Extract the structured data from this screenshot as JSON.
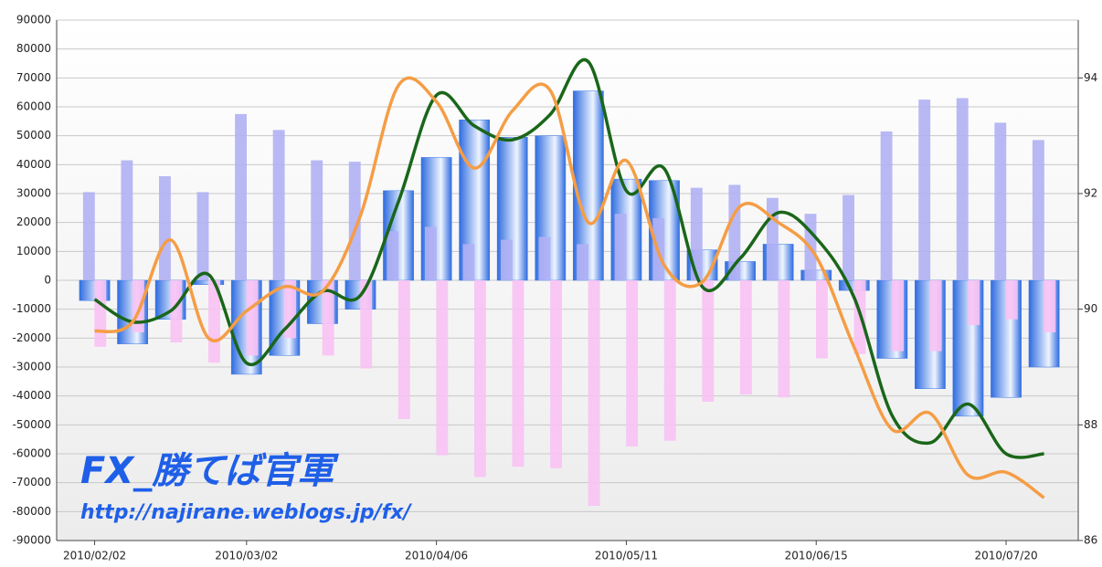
{
  "chart_data": {
    "type": "bar-line",
    "categories": [
      "2010/02/02",
      null,
      null,
      null,
      "2010/03/02",
      null,
      null,
      null,
      null,
      "2010/04/06",
      null,
      null,
      null,
      null,
      "2010/05/11",
      null,
      null,
      null,
      null,
      "2010/06/15",
      null,
      null,
      null,
      null,
      "2010/07/20",
      null
    ],
    "series": [
      {
        "type": "bar",
        "color": "#3a78e6",
        "values": [
          -7000,
          -22000,
          -13500,
          -1500,
          -32500,
          -26000,
          -15000,
          -10000,
          31000,
          42500,
          55500,
          49500,
          50000,
          65500,
          35000,
          34500,
          10500,
          6500,
          12500,
          3500,
          -3500,
          -27000,
          -37500,
          -47000,
          -40500,
          -30000
        ]
      },
      {
        "type": "bar",
        "color": "#b0b0f4",
        "values": [
          30500,
          41500,
          36000,
          30500,
          57500,
          52000,
          41500,
          41000,
          17000,
          18500,
          12500,
          14000,
          15000,
          12500,
          23000,
          21500,
          32000,
          33000,
          28500,
          23000,
          29500,
          51500,
          62500,
          63000,
          54500,
          48500
        ]
      },
      {
        "type": "bar",
        "color": "#f8c2f4",
        "values": [
          -23000,
          -18000,
          -21500,
          -28500,
          -26000,
          -20000,
          -26000,
          -30500,
          -48000,
          -60500,
          -68000,
          -64500,
          -65000,
          -78000,
          -57500,
          -55500,
          -42000,
          -39500,
          -40500,
          -27000,
          -25500,
          -24500,
          -24500,
          -15500,
          -13500,
          -18000
        ]
      },
      {
        "type": "line",
        "axis": "y2",
        "color": "#1a661a",
        "values": [
          90.17,
          89.78,
          89.97,
          90.6,
          89.07,
          89.65,
          90.31,
          90.24,
          91.86,
          93.7,
          93.17,
          92.93,
          93.37,
          94.28,
          92.05,
          92.43,
          90.39,
          90.88,
          91.67,
          91.23,
          90.2,
          88.16,
          87.69,
          88.36,
          87.5,
          87.5
        ]
      },
      {
        "type": "line",
        "axis": "y2",
        "color": "#f59d45",
        "values": [
          89.62,
          89.78,
          91.2,
          89.5,
          89.97,
          90.39,
          90.31,
          91.62,
          93.87,
          93.59,
          92.44,
          93.43,
          93.78,
          91.5,
          92.57,
          90.76,
          90.47,
          91.78,
          91.5,
          90.91,
          89.34,
          87.92,
          88.2,
          87.13,
          87.18,
          86.74
        ]
      }
    ],
    "ylim": [
      -90000,
      90000
    ],
    "yticks": [
      -90000,
      -80000,
      -70000,
      -60000,
      -50000,
      -40000,
      -30000,
      -20000,
      -10000,
      0,
      10000,
      20000,
      30000,
      40000,
      50000,
      60000,
      70000,
      80000,
      90000
    ],
    "y2lim": [
      86,
      95
    ],
    "y2ticks": [
      86,
      88,
      90,
      92,
      94
    ],
    "grid": true,
    "annotations": [
      "FX_勝てば官軍",
      "http://najirane.weblogs.jp/fx/"
    ]
  }
}
